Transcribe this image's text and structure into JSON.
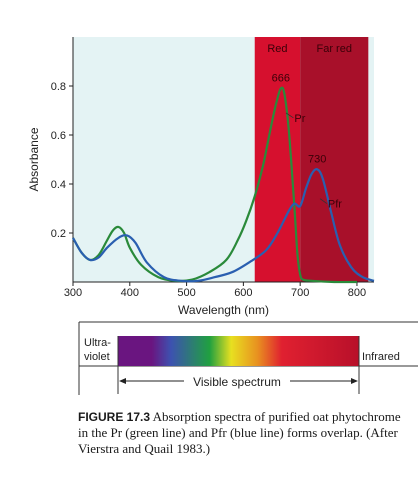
{
  "chart_data": {
    "type": "line",
    "xlabel": "Wavelength (nm)",
    "ylabel": "Absorbance",
    "xlim": [
      300,
      830
    ],
    "ylim": [
      0,
      1.0
    ],
    "x_ticks": [
      300,
      400,
      500,
      600,
      700,
      800
    ],
    "y_ticks": [
      0.2,
      0.4,
      0.6,
      0.8
    ],
    "grid": false,
    "regions": [
      {
        "label": "Red",
        "from": 620,
        "to": 700,
        "color": "#d6102e"
      },
      {
        "label": "Far red",
        "from": 700,
        "to": 820,
        "color": "#a8102a"
      }
    ],
    "series": [
      {
        "name": "Pr",
        "color": "#2a8a3a",
        "x": [
          300,
          315,
          330,
          345,
          360,
          370,
          380,
          390,
          400,
          420,
          450,
          480,
          510,
          540,
          570,
          590,
          605,
          620,
          635,
          650,
          660,
          666,
          672,
          680,
          690,
          695,
          700,
          705,
          720,
          760,
          800
        ],
        "y": [
          0.18,
          0.12,
          0.09,
          0.11,
          0.17,
          0.21,
          0.225,
          0.2,
          0.14,
          0.07,
          0.02,
          0.005,
          0.01,
          0.04,
          0.09,
          0.17,
          0.25,
          0.35,
          0.48,
          0.65,
          0.75,
          0.79,
          0.77,
          0.62,
          0.3,
          0.12,
          0.03,
          0.01,
          0.005,
          0.0,
          0.0
        ]
      },
      {
        "name": "Pfr",
        "color": "#2a5fb0",
        "x": [
          300,
          315,
          330,
          345,
          360,
          380,
          395,
          410,
          430,
          460,
          490,
          520,
          550,
          580,
          610,
          640,
          660,
          680,
          690,
          700,
          710,
          720,
          730,
          740,
          755,
          770,
          790,
          810,
          830
        ],
        "y": [
          0.18,
          0.12,
          0.09,
          0.1,
          0.14,
          0.18,
          0.19,
          0.16,
          0.08,
          0.02,
          0.005,
          0.005,
          0.02,
          0.04,
          0.08,
          0.13,
          0.2,
          0.29,
          0.32,
          0.31,
          0.38,
          0.44,
          0.46,
          0.42,
          0.28,
          0.15,
          0.06,
          0.02,
          0.005
        ]
      }
    ],
    "annotations": [
      {
        "text": "666",
        "x": 666,
        "y": 0.79
      },
      {
        "text": "730",
        "x": 730,
        "y": 0.46
      },
      {
        "text": "Pr",
        "series": "Pr"
      },
      {
        "text": "Pfr",
        "series": "Pfr"
      }
    ]
  },
  "spectrum": {
    "uv_label_line1": "Ultra-",
    "uv_label_line2": "violet",
    "ir_label": "Infrared",
    "visible_label": "Visible spectrum",
    "colors": [
      "#6a1580",
      "#3d52b0",
      "#20a040",
      "#e8e020",
      "#e89020",
      "#e02030",
      "#b8102a"
    ]
  },
  "caption": {
    "figure": "FIGURE 17.3",
    "text": "Absorption spectra of purified oat phytochrome in the Pr (green line) and Pfr (blue line) forms overlap. (After Vierstra and Quail 1983.)"
  }
}
